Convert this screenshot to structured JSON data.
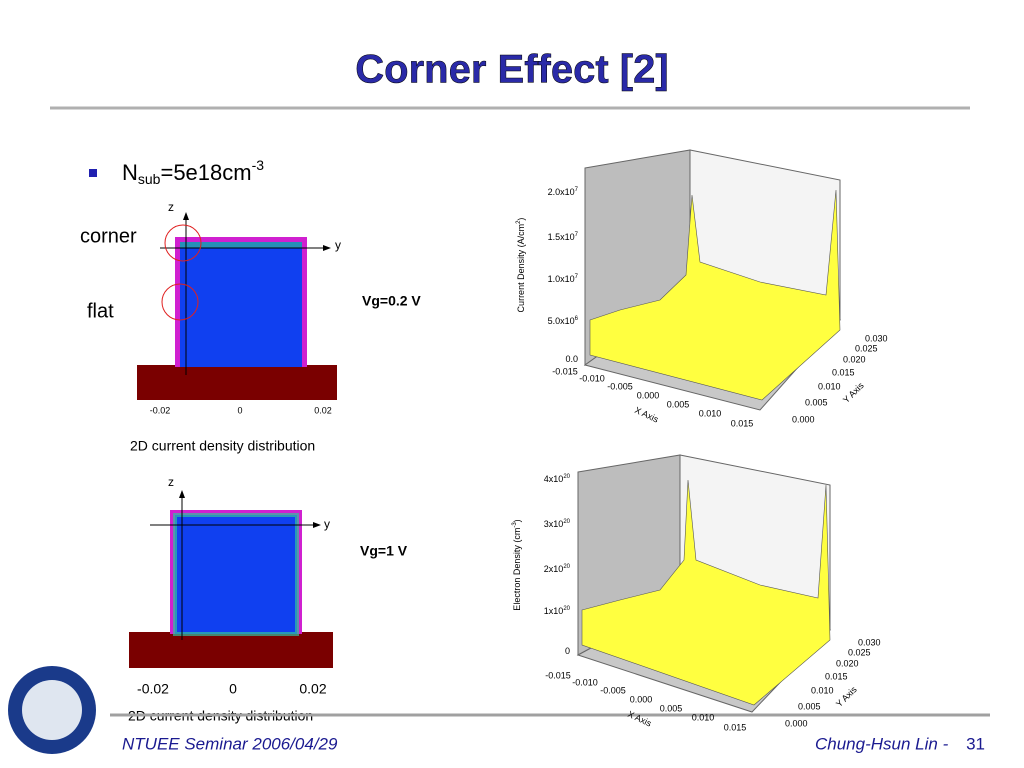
{
  "title": "Corner Effect [2]",
  "bullet": {
    "base": "N",
    "sub": "sub",
    "mid": "=5e18cm",
    "sup": "-3"
  },
  "labels": {
    "corner": "corner",
    "flat": "flat"
  },
  "panels": [
    {
      "z": "z",
      "y": "y",
      "ticks": [
        "-0.02",
        "0",
        "0.02"
      ],
      "caption": "2D current density distribution",
      "vg": "Vg=0.2 V"
    },
    {
      "z": "z",
      "y": "y",
      "ticks": [
        "-0.02",
        "0",
        "0.02"
      ],
      "caption": "2D current density distribution",
      "vg": "Vg=1 V"
    }
  ],
  "plots": [
    {
      "z_title": {
        "text": "Current Density (A/cm",
        "sup": "2",
        "close": ")"
      },
      "z_ticks": [
        {
          "base": "2.0x10",
          "sup": "7"
        },
        {
          "base": "1.5x10",
          "sup": "7"
        },
        {
          "base": "1.0x10",
          "sup": "7"
        },
        {
          "base": "5.0x10",
          "sup": "6"
        },
        {
          "base": "0.0"
        }
      ],
      "x_title": "X Axis",
      "x_ticks": [
        "-0.015",
        "-0.010",
        "-0.005",
        "0.000",
        "0.005",
        "0.010",
        "0.015"
      ],
      "y_title": "Y Axis",
      "y_ticks": [
        "0.000",
        "0.005",
        "0.010",
        "0.015",
        "0.020",
        "0.025",
        "0.030"
      ]
    },
    {
      "z_title": {
        "text": "Electron Density (cm",
        "sup": "-3",
        "close": ")"
      },
      "z_ticks": [
        {
          "base": "4x10",
          "sup": "20"
        },
        {
          "base": "3x10",
          "sup": "20"
        },
        {
          "base": "2x10",
          "sup": "20"
        },
        {
          "base": "1x10",
          "sup": "20"
        },
        {
          "base": "0"
        }
      ],
      "x_title": "X Axis",
      "x_ticks": [
        "-0.015",
        "-0.010",
        "-0.005",
        "0.000",
        "0.005",
        "0.010",
        "0.015"
      ],
      "y_title": "Y Axis",
      "y_ticks": [
        "0.000",
        "0.005",
        "0.010",
        "0.015",
        "0.020",
        "0.025",
        "0.030"
      ]
    }
  ],
  "footer": {
    "left": "NTUEE Seminar 2006/04/29",
    "author": "Chung-Hsun Lin -",
    "page": "31"
  }
}
